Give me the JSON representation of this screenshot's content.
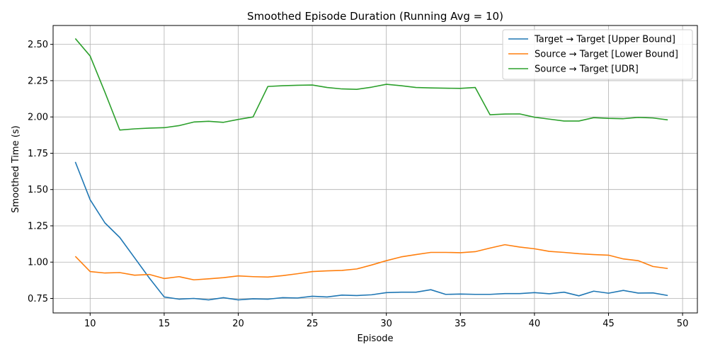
{
  "chart_data": {
    "type": "line",
    "title": "Smoothed Episode Duration (Running Avg = 10)",
    "xlabel": "Episode",
    "ylabel": "Smoothed Time (s)",
    "xlim": [
      7.5,
      51
    ],
    "ylim": [
      0.65,
      2.63
    ],
    "xticks": [
      10,
      15,
      20,
      25,
      30,
      35,
      40,
      45,
      50
    ],
    "yticks": [
      0.75,
      1.0,
      1.25,
      1.5,
      1.75,
      2.0,
      2.25,
      2.5
    ],
    "grid": true,
    "legend_position": "top-right",
    "x": [
      9,
      10,
      11,
      12,
      13,
      14,
      15,
      16,
      17,
      18,
      19,
      20,
      21,
      22,
      23,
      24,
      25,
      26,
      27,
      28,
      29,
      30,
      31,
      32,
      33,
      34,
      35,
      36,
      37,
      38,
      39,
      40,
      41,
      42,
      43,
      44,
      45,
      46,
      47,
      48,
      49
    ],
    "series": [
      {
        "name": "Target → Target [Upper Bound]",
        "color": "#1f77b4",
        "values": [
          1.69,
          1.43,
          1.27,
          1.17,
          1.03,
          0.89,
          0.76,
          0.745,
          0.75,
          0.74,
          0.755,
          0.74,
          0.747,
          0.745,
          0.755,
          0.753,
          0.765,
          0.76,
          0.773,
          0.77,
          0.775,
          0.79,
          0.793,
          0.793,
          0.81,
          0.778,
          0.78,
          0.778,
          0.778,
          0.783,
          0.783,
          0.79,
          0.782,
          0.793,
          0.768,
          0.8,
          0.786,
          0.805,
          0.787,
          0.788,
          0.77
        ]
      },
      {
        "name": "Source → Target [Lower Bound]",
        "color": "#ff7f0e",
        "values": [
          1.04,
          0.935,
          0.925,
          0.928,
          0.91,
          0.915,
          0.887,
          0.9,
          0.878,
          0.885,
          0.893,
          0.905,
          0.9,
          0.897,
          0.907,
          0.92,
          0.935,
          0.94,
          0.943,
          0.953,
          0.98,
          1.01,
          1.036,
          1.052,
          1.067,
          1.067,
          1.065,
          1.072,
          1.097,
          1.12,
          1.104,
          1.092,
          1.074,
          1.067,
          1.058,
          1.052,
          1.048,
          1.022,
          1.01,
          0.97,
          0.956
        ]
      },
      {
        "name": "Source → Target [UDR]",
        "color": "#2ca02c",
        "values": [
          2.54,
          2.42,
          2.17,
          1.91,
          1.918,
          1.923,
          1.926,
          1.94,
          1.965,
          1.97,
          1.963,
          1.983,
          2.0,
          2.21,
          2.215,
          2.218,
          2.22,
          2.203,
          2.193,
          2.19,
          2.205,
          2.225,
          2.215,
          2.203,
          2.2,
          2.198,
          2.197,
          2.203,
          2.015,
          2.02,
          2.021,
          1.998,
          1.985,
          1.972,
          1.972,
          1.995,
          1.99,
          1.988,
          1.997,
          1.993,
          1.98
        ]
      }
    ]
  }
}
